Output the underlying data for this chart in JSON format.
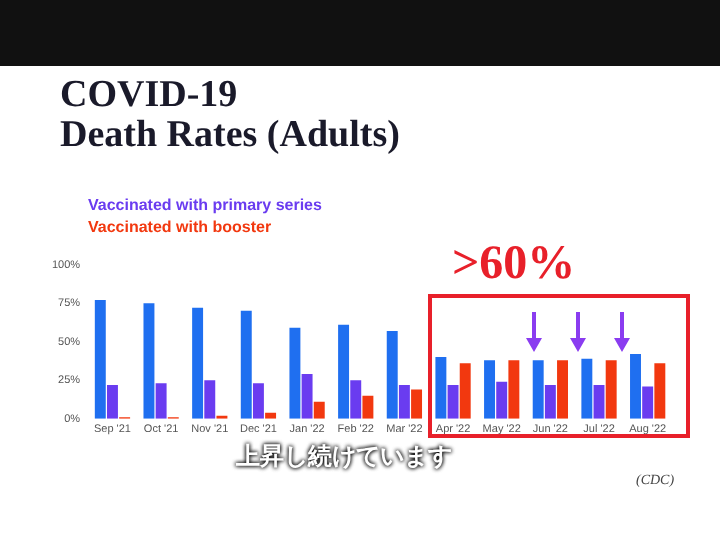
{
  "chart_data": {
    "type": "bar",
    "title": "COVID-19\nDeath Rates (Adults)",
    "categories": [
      "Sep '21",
      "Oct '21",
      "Nov '21",
      "Dec '21",
      "Jan '22",
      "Feb '22",
      "Mar '22",
      "Apr '22",
      "May '22",
      "Jun '22",
      "Jul '22",
      "Aug '22"
    ],
    "series": [
      {
        "color": "#1f6ff0",
        "values": [
          77,
          75,
          72,
          70,
          59,
          61,
          57,
          40,
          38,
          38,
          39,
          42
        ]
      },
      {
        "name": "Vaccinated with primary series",
        "color": "#6a3cf0",
        "values": [
          22,
          23,
          25,
          23,
          29,
          25,
          22,
          22,
          24,
          22,
          22,
          21
        ]
      },
      {
        "name": "Vaccinated with booster",
        "color": "#f2380f",
        "values": [
          1,
          1,
          2,
          4,
          11,
          15,
          19,
          36,
          38,
          38,
          38,
          36
        ]
      }
    ],
    "ylim": [
      0,
      100
    ],
    "yticks": [
      {
        "value": 0,
        "label": "0%"
      },
      {
        "value": 25,
        "label": "25%"
      },
      {
        "value": 50,
        "label": "50%"
      },
      {
        "value": 75,
        "label": "75%"
      },
      {
        "value": 100,
        "label": "100%"
      }
    ],
    "legend": "top left",
    "annotations": [
      ">60%",
      "上昇し続けています",
      "(CDC)"
    ]
  }
}
